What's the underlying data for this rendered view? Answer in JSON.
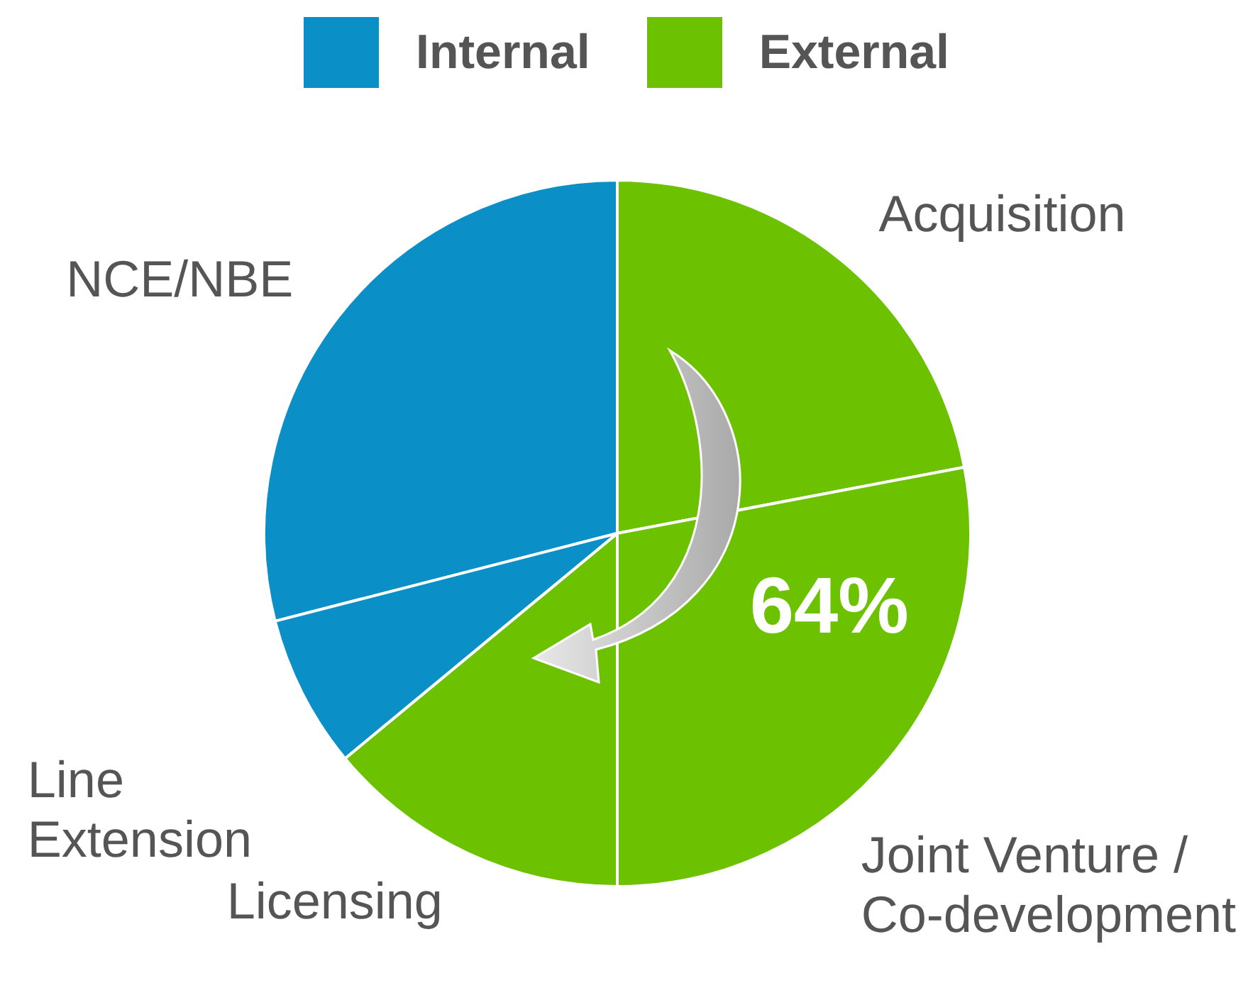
{
  "chart_data": {
    "type": "pie",
    "categories": [
      "NCE/NBE",
      "Acquisition",
      "Joint Venture / Co-development",
      "Licensing",
      "Line Extension"
    ],
    "values": [
      29,
      22,
      28,
      14,
      7
    ],
    "colors": [
      "#0a8fc7",
      "#6cc200",
      "#6cc200",
      "#6cc200",
      "#0a8fc7"
    ],
    "annotations": [
      "Internal",
      "External",
      "64%"
    ]
  }
}
